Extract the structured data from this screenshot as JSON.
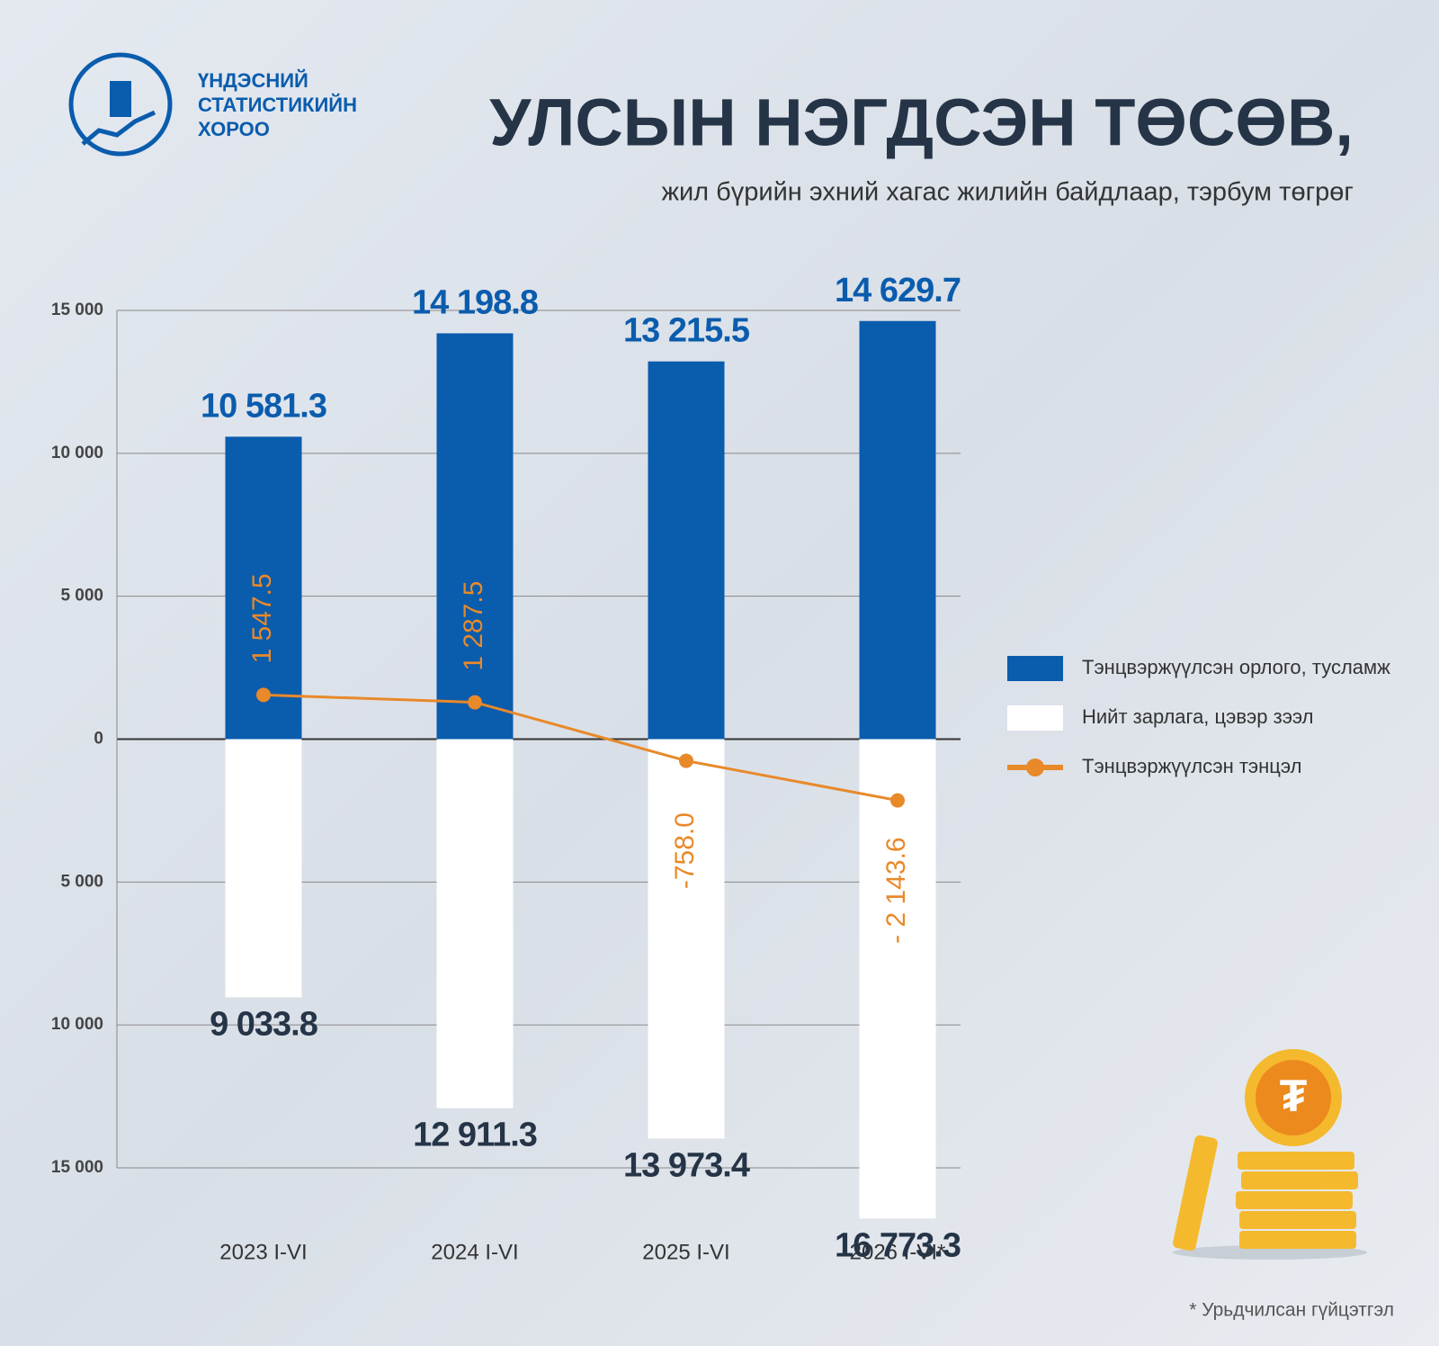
{
  "logo": {
    "lines": [
      "ҮНДЭСНИЙ",
      "СТАТИСТИКИЙН",
      "ХОРОО"
    ]
  },
  "footnote": "* Урьдчилсан гүйцэтгэл",
  "chart_data": {
    "type": "bar",
    "title": "УЛСЫН НЭГДСЭН ТӨСӨВ,",
    "subtitle": "жил бүрийн эхний хагас жилийн байдлаар, тэрбум төгрөг",
    "categories": [
      "2023 I-VI",
      "2024 I-VI",
      "2025 I-VI",
      "2026 I-VI*"
    ],
    "series": [
      {
        "name": "Тэнцвэржүүлсэн орлого, тусламж",
        "type": "bar",
        "color": "#0a5cad",
        "values": [
          10581.3,
          14198.8,
          13215.5,
          14629.7
        ],
        "value_labels": [
          "10 581.3",
          "14 198.8",
          "13 215.5",
          "14 629.7"
        ]
      },
      {
        "name": "Нийт зарлага, цэвэр зээл",
        "type": "bar",
        "color": "#ffffff",
        "values": [
          -9033.8,
          -12911.3,
          -13973.4,
          -16773.3
        ],
        "value_labels": [
          "9 033.8",
          "12 911.3",
          "13 973.4",
          "16 773.3"
        ]
      },
      {
        "name": "Тэнцвэржүүлсэн тэнцэл",
        "type": "line",
        "color": "#e8892a",
        "values": [
          1547.5,
          1287.5,
          -758.0,
          -2143.6
        ],
        "value_labels": [
          "1 547.5",
          "1 287.5",
          "-758.0",
          "- 2 143.6"
        ]
      }
    ],
    "ylim": [
      -15000,
      15000
    ],
    "yticks": [
      {
        "value": 15000,
        "label": "15 000"
      },
      {
        "value": 10000,
        "label": "10 000"
      },
      {
        "value": 5000,
        "label": "5 000"
      },
      0,
      {
        "value": -5000,
        "label": "5 000"
      },
      {
        "value": -10000,
        "label": "10 000"
      },
      {
        "value": -15000,
        "label": "15 000"
      }
    ],
    "grid": true,
    "legend": "right"
  }
}
